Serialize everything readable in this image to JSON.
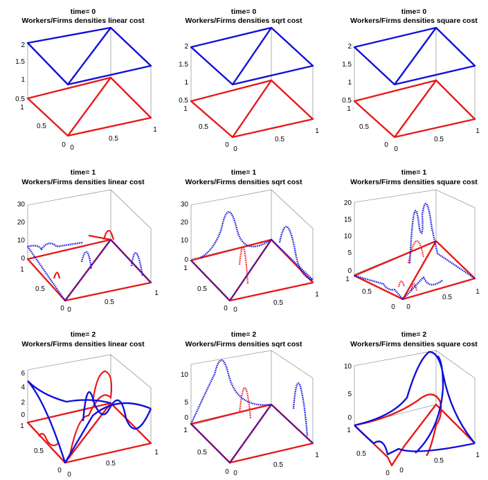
{
  "colors": {
    "workers": "#1010d8",
    "firms": "#e81818",
    "box": "#777777"
  },
  "chart_data": [
    {
      "type": "surface3d",
      "title_time": "time= 0",
      "title_desc": "Workers/Firms densities  linear cost",
      "zticks": [
        "2",
        "1.5",
        "1",
        "0.5"
      ],
      "xticks": [
        "0",
        "0.5",
        "1"
      ],
      "yticks": [
        "0",
        "0.5",
        "1"
      ]
    },
    {
      "type": "surface3d",
      "title_time": "time= 0",
      "title_desc": "Workers/Firms densities  sqrt cost",
      "zticks": [
        "2",
        "1.5",
        "1",
        "0.5"
      ],
      "xticks": [
        "0",
        "0.5",
        "1"
      ],
      "yticks": [
        "0",
        "0.5",
        "1"
      ]
    },
    {
      "type": "surface3d",
      "title_time": "time= 0",
      "title_desc": "Workers/Firms densities  square cost",
      "zticks": [
        "2",
        "1.5",
        "1",
        "0.5"
      ],
      "xticks": [
        "0",
        "0.5",
        "1"
      ],
      "yticks": [
        "0",
        "0.5",
        "1"
      ]
    },
    {
      "type": "surface3d",
      "title_time": "time= 1",
      "title_desc": "Workers/Firms densities  linear cost",
      "zticks": [
        "30",
        "20",
        "10",
        "0"
      ],
      "xticks": [
        "0",
        "0.5",
        "1"
      ],
      "yticks": [
        "0",
        "0.5",
        "1"
      ]
    },
    {
      "type": "surface3d",
      "title_time": "time= 1",
      "title_desc": "Workers/Firms densities  sqrt cost",
      "zticks": [
        "30",
        "20",
        "10",
        "0"
      ],
      "xticks": [
        "0",
        "0.5",
        "1"
      ],
      "yticks": [
        "0",
        "0.5",
        "1"
      ]
    },
    {
      "type": "surface3d",
      "title_time": "time= 1",
      "title_desc": "Workers/Firms densities  square cost",
      "zticks": [
        "20",
        "15",
        "10",
        "5",
        "0"
      ],
      "xticks": [
        "0",
        "0.5",
        "1"
      ],
      "yticks": [
        "0",
        "0.5",
        "1"
      ]
    },
    {
      "type": "surface3d",
      "title_time": "time= 2",
      "title_desc": "Workers/Firms densities  linear cost",
      "zticks": [
        "6",
        "4",
        "2",
        "0"
      ],
      "xticks": [
        "0",
        "0.5",
        "1"
      ],
      "yticks": [
        "0",
        "0.5",
        "1"
      ]
    },
    {
      "type": "surface3d",
      "title_time": "time= 2",
      "title_desc": "Workers/Firms densities  sqrt cost",
      "zticks": [
        "10",
        "5",
        "0"
      ],
      "xticks": [
        "0",
        "0.5",
        "1"
      ],
      "yticks": [
        "0",
        "0.5",
        "1"
      ]
    },
    {
      "type": "surface3d",
      "title_time": "time= 2",
      "title_desc": "Workers/Firms densities  square cost",
      "zticks": [
        "10",
        "5",
        "0"
      ],
      "xticks": [
        "0",
        "0.5",
        "1"
      ],
      "yticks": [
        "0",
        "0.5",
        "1"
      ]
    }
  ]
}
